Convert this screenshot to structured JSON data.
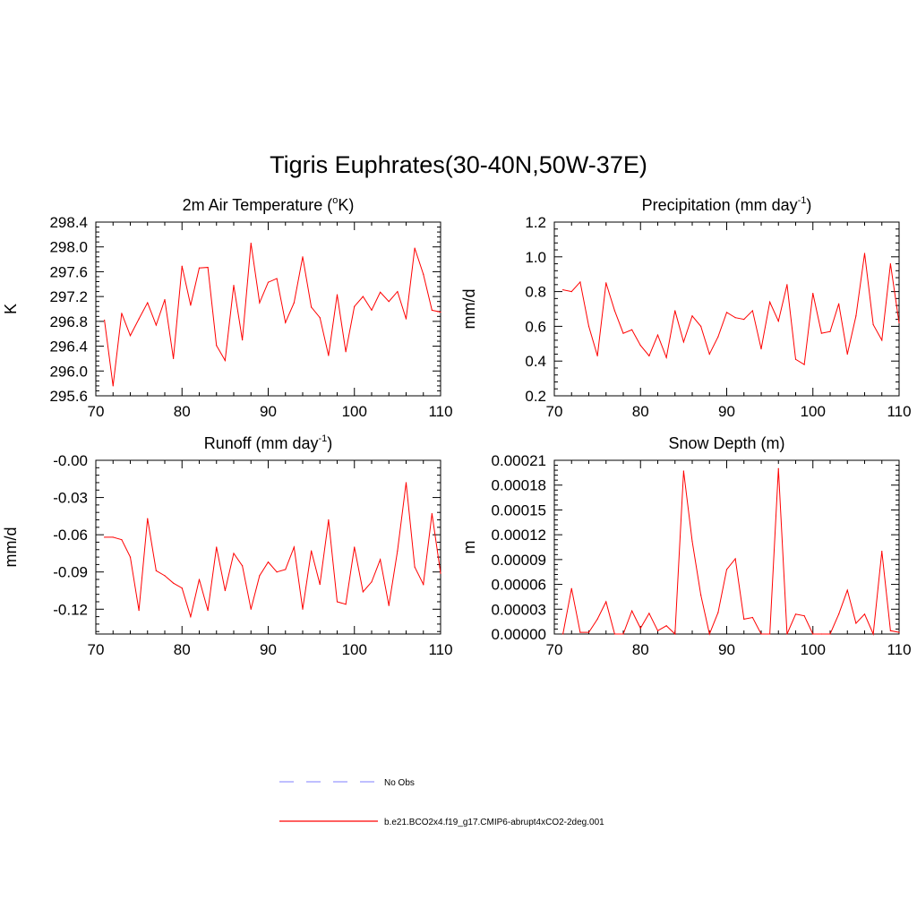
{
  "figure_title": "Tigris Euphrates(30-40N,50W-37E)",
  "colors": {
    "model_line": "#ff0000",
    "obs_line": "#9999ff",
    "axis": "#000000"
  },
  "legend": {
    "obs_label": "No Obs",
    "model_label": "b.e21.BCO2x4.f19_g17.CMIP6-abrupt4xCO2-2deg.001"
  },
  "chart_data": [
    {
      "type": "line",
      "title_main": "2m Air Temperature (",
      "title_sup": "o",
      "title_tail": "K)",
      "ylabel": "K",
      "xlim": [
        70,
        110
      ],
      "ylim": [
        295.6,
        298.4
      ],
      "xticks": [
        70,
        80,
        90,
        100,
        110
      ],
      "yticks": [
        295.6,
        296.0,
        296.4,
        296.8,
        297.2,
        297.6,
        298.0,
        298.4
      ],
      "ytick_labels": [
        "295.6",
        "296.0",
        "296.4",
        "296.8",
        "297.2",
        "297.6",
        "298.0",
        "298.4"
      ],
      "x": [
        71,
        72,
        73,
        74,
        75,
        76,
        77,
        78,
        79,
        80,
        81,
        82,
        83,
        84,
        85,
        86,
        87,
        88,
        89,
        90,
        91,
        92,
        93,
        94,
        95,
        96,
        97,
        98,
        99,
        100,
        101,
        102,
        103,
        104,
        105,
        106,
        107,
        108,
        109,
        110
      ],
      "values": [
        296.82,
        295.76,
        296.93,
        296.57,
        296.84,
        297.1,
        296.74,
        297.15,
        296.2,
        297.69,
        297.06,
        297.66,
        297.67,
        296.41,
        296.17,
        297.38,
        296.5,
        298.06,
        297.1,
        297.43,
        297.49,
        296.78,
        297.1,
        297.84,
        297.03,
        296.86,
        296.25,
        297.23,
        296.31,
        297.04,
        297.2,
        296.98,
        297.27,
        297.12,
        297.28,
        296.84,
        297.98,
        297.56,
        296.98,
        296.95
      ]
    },
    {
      "type": "line",
      "title_main": "Precipitation (mm day",
      "title_sup": "-1",
      "title_tail": ")",
      "ylabel": "mm/d",
      "xlim": [
        70,
        110
      ],
      "ylim": [
        0.2,
        1.2
      ],
      "xticks": [
        70,
        80,
        90,
        100,
        110
      ],
      "yticks": [
        0.2,
        0.4,
        0.6,
        0.8,
        1.0,
        1.2
      ],
      "ytick_labels": [
        "0.2",
        "0.4",
        "0.6",
        "0.8",
        "1.0",
        "1.2"
      ],
      "x": [
        71,
        72,
        73,
        74,
        75,
        76,
        77,
        78,
        79,
        80,
        81,
        82,
        83,
        84,
        85,
        86,
        87,
        88,
        89,
        90,
        91,
        92,
        93,
        94,
        95,
        96,
        97,
        98,
        99,
        100,
        101,
        102,
        103,
        104,
        105,
        106,
        107,
        108,
        109,
        110
      ],
      "values": [
        0.81,
        0.8,
        0.855,
        0.6,
        0.43,
        0.85,
        0.69,
        0.56,
        0.58,
        0.49,
        0.43,
        0.55,
        0.42,
        0.69,
        0.51,
        0.66,
        0.6,
        0.44,
        0.54,
        0.68,
        0.65,
        0.64,
        0.69,
        0.47,
        0.74,
        0.63,
        0.84,
        0.41,
        0.38,
        0.79,
        0.56,
        0.57,
        0.73,
        0.44,
        0.66,
        1.02,
        0.61,
        0.52,
        0.96,
        0.62
      ]
    },
    {
      "type": "line",
      "title_main": "Runoff (mm day",
      "title_sup": "-1",
      "title_tail": ")",
      "ylabel": "mm/d",
      "xlim": [
        70,
        110
      ],
      "ylim": [
        -0.14,
        0.0
      ],
      "xticks": [
        70,
        80,
        90,
        100,
        110
      ],
      "yticks": [
        -0.12,
        -0.09,
        -0.06,
        -0.03,
        0.0
      ],
      "ytick_labels": [
        "-0.12",
        "-0.09",
        "-0.06",
        "-0.03",
        "-0.00"
      ],
      "x": [
        71,
        72,
        73,
        74,
        75,
        76,
        77,
        78,
        79,
        80,
        81,
        82,
        83,
        84,
        85,
        86,
        87,
        88,
        89,
        90,
        91,
        92,
        93,
        94,
        95,
        96,
        97,
        98,
        99,
        100,
        101,
        102,
        103,
        104,
        105,
        106,
        107,
        108,
        109,
        110
      ],
      "values": [
        -0.062,
        -0.062,
        -0.064,
        -0.078,
        -0.121,
        -0.047,
        -0.089,
        -0.093,
        -0.099,
        -0.103,
        -0.126,
        -0.096,
        -0.121,
        -0.07,
        -0.105,
        -0.075,
        -0.085,
        -0.12,
        -0.093,
        -0.082,
        -0.09,
        -0.088,
        -0.07,
        -0.12,
        -0.073,
        -0.1,
        -0.048,
        -0.114,
        -0.116,
        -0.07,
        -0.106,
        -0.098,
        -0.08,
        -0.117,
        -0.073,
        -0.018,
        -0.086,
        -0.1,
        -0.043,
        -0.091
      ]
    },
    {
      "type": "line",
      "title_main": "Snow Depth (m)",
      "title_sup": "",
      "title_tail": "",
      "ylabel": "m",
      "xlim": [
        70,
        110
      ],
      "ylim": [
        0.0,
        0.00021
      ],
      "xticks": [
        70,
        80,
        90,
        100,
        110
      ],
      "yticks": [
        0.0,
        3e-05,
        6e-05,
        9e-05,
        0.00012,
        0.00015,
        0.00018,
        0.00021
      ],
      "ytick_labels": [
        "0.00000",
        "0.00003",
        "0.00006",
        "0.00009",
        "0.00012",
        "0.00015",
        "0.00018",
        "0.00021"
      ],
      "x": [
        71,
        72,
        73,
        74,
        75,
        76,
        77,
        78,
        79,
        80,
        81,
        82,
        83,
        84,
        85,
        86,
        87,
        88,
        89,
        90,
        91,
        92,
        93,
        94,
        95,
        96,
        97,
        98,
        99,
        100,
        101,
        102,
        103,
        104,
        105,
        106,
        107,
        108,
        109,
        110
      ],
      "values": [
        0.0,
        5.5e-05,
        2e-06,
        2e-06,
        1.8e-05,
        3.9e-05,
        0.0,
        0.0,
        2.8e-05,
        7e-06,
        2.5e-05,
        4e-06,
        1e-05,
        0.0,
        0.000197,
        0.000112,
        4.7e-05,
        0.0,
        2.6e-05,
        7.8e-05,
        9.1e-05,
        1.8e-05,
        2e-05,
        0.0,
        0.0,
        0.0002,
        0.0,
        2.4e-05,
        2.2e-05,
        0.0,
        0.0,
        0.0,
        2.4e-05,
        5.3e-05,
        1.3e-05,
        2.4e-05,
        0.0,
        0.0001,
        4e-06,
        2e-06
      ]
    }
  ]
}
